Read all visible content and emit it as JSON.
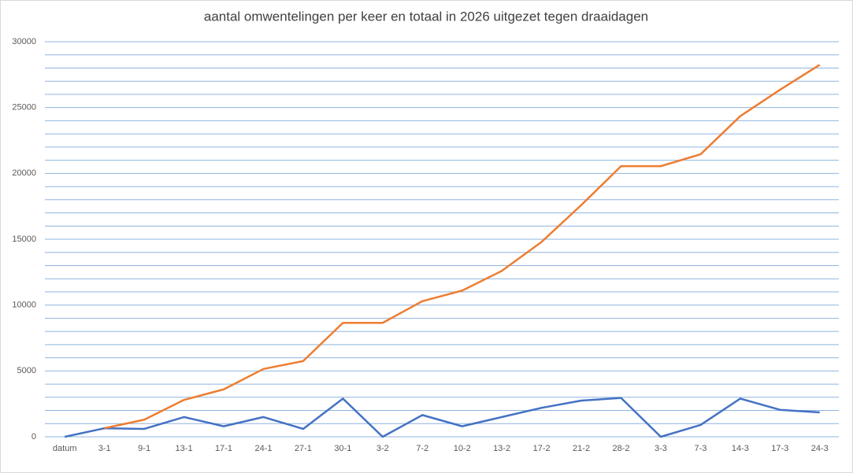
{
  "chart_data": {
    "type": "line",
    "title": "aantal omwentelingen per keer en totaal in 2026 uitgezet tegen draaidagen",
    "categories": [
      "datum",
      "3-1",
      "9-1",
      "13-1",
      "17-1",
      "24-1",
      "27-1",
      "30-1",
      "3-2",
      "7-2",
      "10-2",
      "13-2",
      "17-2",
      "21-2",
      "28-2",
      "3-3",
      "7-3",
      "14-3",
      "17-3",
      "24-3"
    ],
    "series": [
      {
        "color": "#4472c4",
        "values": [
          0,
          650,
          600,
          1500,
          800,
          1500,
          600,
          2900,
          0,
          1650,
          800,
          1500,
          2200,
          2750,
          2950,
          0,
          900,
          2900,
          2050,
          1850
        ]
      },
      {
        "color": "#ed7d31",
        "values": [
          null,
          650,
          1300,
          2800,
          3600,
          5150,
          5750,
          8650,
          8650,
          10300,
          11100,
          12600,
          14800,
          17600,
          20550,
          20550,
          21450,
          24350,
          26350,
          28250
        ]
      }
    ],
    "ylim": [
      0,
      30000
    ],
    "yticks": [
      0,
      5000,
      10000,
      15000,
      20000,
      25000,
      30000
    ],
    "ygrid": [
      0,
      1000,
      2000,
      3000,
      4000,
      5000,
      6000,
      7000,
      8000,
      9000,
      10000,
      11000,
      12000,
      13000,
      14000,
      15000,
      16000,
      17000,
      18000,
      19000,
      20000,
      21000,
      22000,
      23000,
      24000,
      25000,
      26000,
      27000,
      28000,
      29000,
      30000
    ],
    "grid": true,
    "grid_color": "#8fb4e0"
  }
}
